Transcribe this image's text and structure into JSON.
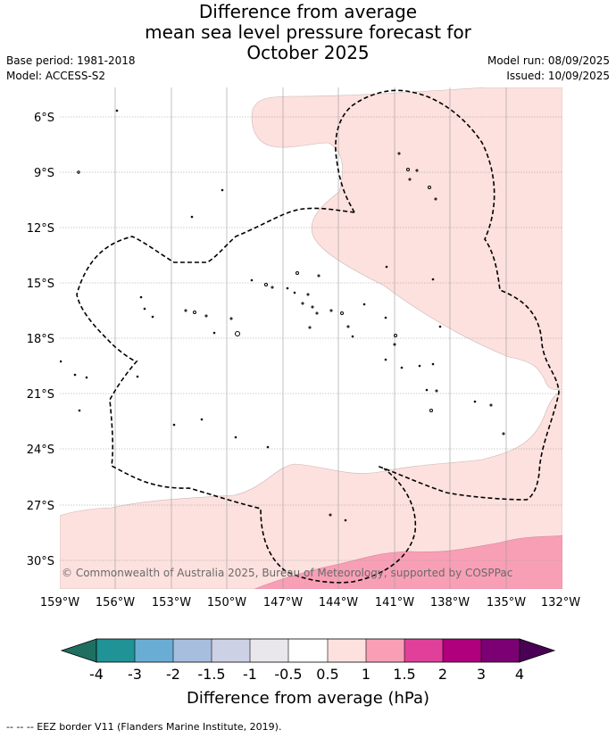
{
  "title": {
    "line1": "Difference from average",
    "line2": "mean sea level pressure forecast for",
    "line3": "October 2025"
  },
  "meta": {
    "base_period": "Base period: 1981-2018",
    "model": "Model: ACCESS-S2",
    "model_run": "Model run: 08/09/2025",
    "issued": "Issued: 10/09/2025"
  },
  "map": {
    "lat_labels": [
      "6°S",
      "9°S",
      "12°S",
      "15°S",
      "18°S",
      "21°S",
      "24°S",
      "27°S",
      "30°S"
    ],
    "lon_labels": [
      "159°W",
      "156°W",
      "153°W",
      "150°W",
      "147°W",
      "144°W",
      "141°W",
      "138°W",
      "135°W",
      "132°W"
    ],
    "copyright": "© Commonwealth of Australia 2025, Bureau of Meteorology, supported by COSPPac"
  },
  "colorbar": {
    "colors": [
      "#1f6f60",
      "#1f9396",
      "#6aadd4",
      "#a7bede",
      "#cdd1e6",
      "#e9e7ec",
      "#ffffff",
      "#fde1de",
      "#f89fb6",
      "#e0409a",
      "#b0007e",
      "#7b0073",
      "#4a0055"
    ],
    "ticks": [
      "-4",
      "-3",
      "-2",
      "-1.5",
      "-1",
      "-0.5",
      "0.5",
      "1",
      "1.5",
      "2",
      "3",
      "4"
    ],
    "label": "Difference from average (hPa)"
  },
  "footer": "--  --  -- EEZ border V11 (Flanders Marine Institute, 2019)."
}
